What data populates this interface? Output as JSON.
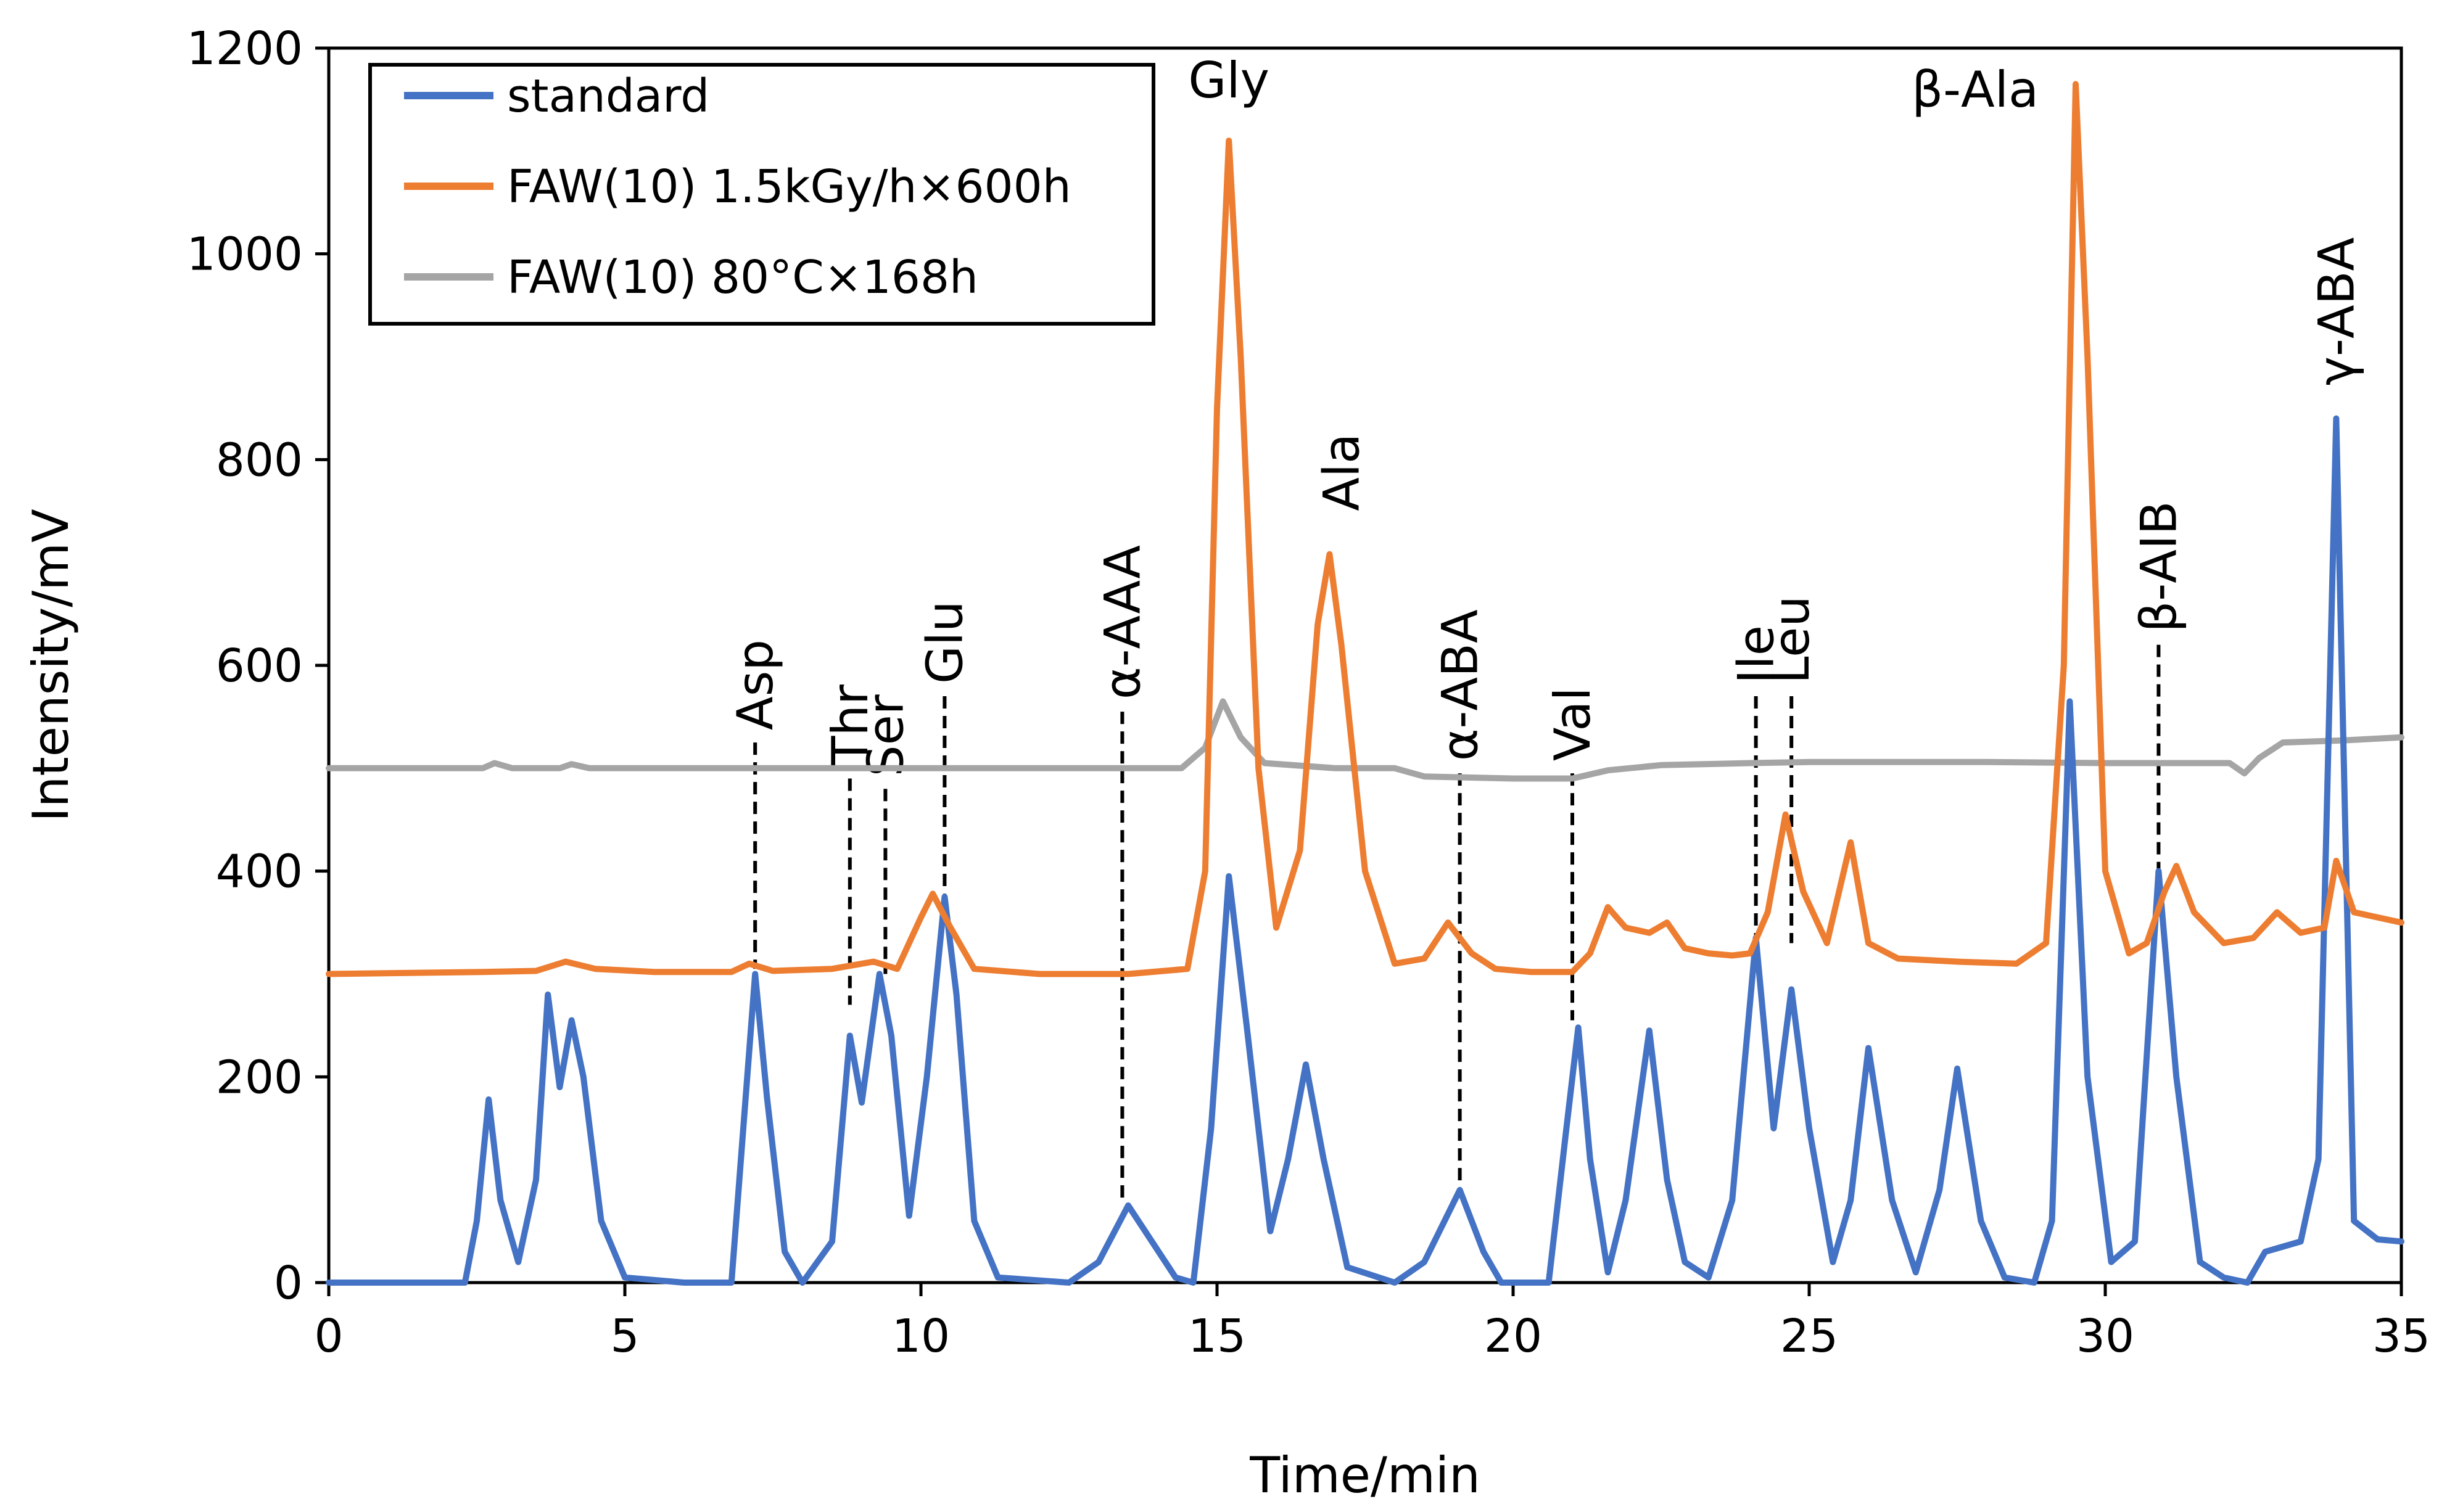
{
  "chart_data": {
    "type": "line",
    "title": "",
    "xlabel": "Time/min",
    "ylabel": "Intensity/mV",
    "xlim": [
      0,
      35
    ],
    "ylim": [
      0,
      1200
    ],
    "xticks": [
      0,
      5,
      10,
      15,
      20,
      25,
      30,
      35
    ],
    "yticks": [
      0,
      200,
      400,
      600,
      800,
      1000,
      1200
    ],
    "grid": false,
    "legend_position": "top-left",
    "series": [
      {
        "name": "standard",
        "color": "#4472C4",
        "points": [
          [
            0,
            0
          ],
          [
            2.3,
            0
          ],
          [
            2.5,
            60
          ],
          [
            2.7,
            178
          ],
          [
            2.9,
            80
          ],
          [
            3.2,
            20
          ],
          [
            3.5,
            100
          ],
          [
            3.7,
            280
          ],
          [
            3.9,
            190
          ],
          [
            4.1,
            255
          ],
          [
            4.3,
            200
          ],
          [
            4.6,
            60
          ],
          [
            5.0,
            5
          ],
          [
            6.0,
            0
          ],
          [
            6.8,
            0
          ],
          [
            7.0,
            150
          ],
          [
            7.2,
            300
          ],
          [
            7.4,
            180
          ],
          [
            7.7,
            30
          ],
          [
            8.0,
            0
          ],
          [
            8.5,
            40
          ],
          [
            8.8,
            240
          ],
          [
            9.0,
            175
          ],
          [
            9.3,
            300
          ],
          [
            9.5,
            240
          ],
          [
            9.8,
            65
          ],
          [
            10.1,
            200
          ],
          [
            10.4,
            375
          ],
          [
            10.6,
            280
          ],
          [
            10.9,
            60
          ],
          [
            11.3,
            5
          ],
          [
            12.5,
            0
          ],
          [
            13.0,
            20
          ],
          [
            13.5,
            75
          ],
          [
            13.9,
            40
          ],
          [
            14.3,
            5
          ],
          [
            14.6,
            0
          ],
          [
            14.9,
            150
          ],
          [
            15.2,
            395
          ],
          [
            15.5,
            250
          ],
          [
            15.9,
            50
          ],
          [
            16.2,
            120
          ],
          [
            16.5,
            212
          ],
          [
            16.8,
            120
          ],
          [
            17.2,
            15
          ],
          [
            18.0,
            0
          ],
          [
            18.5,
            20
          ],
          [
            19.1,
            90
          ],
          [
            19.5,
            30
          ],
          [
            19.8,
            0
          ],
          [
            20.6,
            0
          ],
          [
            20.9,
            150
          ],
          [
            21.1,
            248
          ],
          [
            21.3,
            120
          ],
          [
            21.6,
            10
          ],
          [
            21.9,
            80
          ],
          [
            22.3,
            245
          ],
          [
            22.6,
            100
          ],
          [
            22.9,
            20
          ],
          [
            23.3,
            5
          ],
          [
            23.7,
            80
          ],
          [
            24.1,
            335
          ],
          [
            24.4,
            150
          ],
          [
            24.7,
            285
          ],
          [
            25.0,
            150
          ],
          [
            25.4,
            20
          ],
          [
            25.7,
            80
          ],
          [
            26.0,
            228
          ],
          [
            26.4,
            80
          ],
          [
            26.8,
            10
          ],
          [
            27.2,
            90
          ],
          [
            27.5,
            208
          ],
          [
            27.9,
            60
          ],
          [
            28.3,
            5
          ],
          [
            28.8,
            0
          ],
          [
            29.1,
            60
          ],
          [
            29.4,
            565
          ],
          [
            29.7,
            200
          ],
          [
            30.1,
            20
          ],
          [
            30.5,
            40
          ],
          [
            30.9,
            400
          ],
          [
            31.2,
            200
          ],
          [
            31.6,
            20
          ],
          [
            32.0,
            5
          ],
          [
            32.4,
            0
          ],
          [
            32.7,
            30
          ],
          [
            33.3,
            40
          ],
          [
            33.6,
            120
          ],
          [
            33.9,
            840
          ],
          [
            34.2,
            60
          ],
          [
            34.6,
            42
          ],
          [
            35.0,
            40
          ]
        ]
      },
      {
        "name": "FAW(10) 1.5kGy/h×600h",
        "color": "#ED7D31",
        "points": [
          [
            0,
            300
          ],
          [
            2.6,
            302
          ],
          [
            3.5,
            303
          ],
          [
            4.0,
            312
          ],
          [
            4.5,
            305
          ],
          [
            5.5,
            302
          ],
          [
            6.8,
            302
          ],
          [
            7.1,
            310
          ],
          [
            7.5,
            303
          ],
          [
            8.5,
            305
          ],
          [
            9.2,
            312
          ],
          [
            9.6,
            305
          ],
          [
            10.0,
            355
          ],
          [
            10.2,
            378
          ],
          [
            10.5,
            345
          ],
          [
            10.9,
            305
          ],
          [
            12.0,
            300
          ],
          [
            13.5,
            300
          ],
          [
            14.5,
            305
          ],
          [
            14.8,
            400
          ],
          [
            15.0,
            850
          ],
          [
            15.2,
            1110
          ],
          [
            15.4,
            900
          ],
          [
            15.7,
            500
          ],
          [
            16.0,
            345
          ],
          [
            16.4,
            420
          ],
          [
            16.7,
            640
          ],
          [
            16.9,
            708
          ],
          [
            17.1,
            620
          ],
          [
            17.5,
            400
          ],
          [
            18.0,
            310
          ],
          [
            18.5,
            315
          ],
          [
            18.9,
            350
          ],
          [
            19.3,
            320
          ],
          [
            19.7,
            305
          ],
          [
            20.3,
            302
          ],
          [
            21.0,
            302
          ],
          [
            21.3,
            320
          ],
          [
            21.6,
            365
          ],
          [
            21.9,
            345
          ],
          [
            22.3,
            340
          ],
          [
            22.6,
            350
          ],
          [
            22.9,
            325
          ],
          [
            23.3,
            320
          ],
          [
            23.7,
            318
          ],
          [
            24.0,
            320
          ],
          [
            24.3,
            360
          ],
          [
            24.6,
            455
          ],
          [
            24.9,
            380
          ],
          [
            25.3,
            330
          ],
          [
            25.7,
            428
          ],
          [
            26.0,
            330
          ],
          [
            26.5,
            315
          ],
          [
            27.5,
            312
          ],
          [
            28.5,
            310
          ],
          [
            29.0,
            330
          ],
          [
            29.3,
            600
          ],
          [
            29.5,
            1165
          ],
          [
            29.7,
            900
          ],
          [
            30.0,
            400
          ],
          [
            30.4,
            320
          ],
          [
            30.7,
            330
          ],
          [
            31.0,
            380
          ],
          [
            31.2,
            405
          ],
          [
            31.5,
            360
          ],
          [
            32.0,
            330
          ],
          [
            32.5,
            335
          ],
          [
            32.9,
            360
          ],
          [
            33.3,
            340
          ],
          [
            33.7,
            345
          ],
          [
            33.9,
            410
          ],
          [
            34.2,
            360
          ],
          [
            34.6,
            355
          ],
          [
            35.0,
            350
          ]
        ]
      },
      {
        "name": "FAW(10) 80°C×168h",
        "color": "#A5A5A5",
        "points": [
          [
            0,
            500
          ],
          [
            2.6,
            500
          ],
          [
            2.8,
            505
          ],
          [
            3.1,
            500
          ],
          [
            3.9,
            500
          ],
          [
            4.1,
            504
          ],
          [
            4.4,
            500
          ],
          [
            8.0,
            500
          ],
          [
            12.0,
            500
          ],
          [
            14.4,
            500
          ],
          [
            14.8,
            520
          ],
          [
            15.1,
            565
          ],
          [
            15.4,
            530
          ],
          [
            15.8,
            505
          ],
          [
            17.0,
            500
          ],
          [
            18.0,
            500
          ],
          [
            18.5,
            492
          ],
          [
            20.0,
            490
          ],
          [
            21.0,
            490
          ],
          [
            21.6,
            498
          ],
          [
            22.5,
            503
          ],
          [
            24.0,
            505
          ],
          [
            25.0,
            506
          ],
          [
            28.0,
            506
          ],
          [
            30.0,
            505
          ],
          [
            32.1,
            505
          ],
          [
            32.35,
            495
          ],
          [
            32.6,
            510
          ],
          [
            33.0,
            525
          ],
          [
            34.0,
            527
          ],
          [
            35.0,
            530
          ]
        ]
      }
    ],
    "annotations": [
      {
        "label": "Asp",
        "x": 7.2,
        "y_top": 525,
        "y_bottom": 305
      },
      {
        "label": "Thr",
        "x": 8.8,
        "y_top": 490,
        "y_bottom": 270
      },
      {
        "label": "Ser",
        "x": 9.4,
        "y_top": 480,
        "y_bottom": 300
      },
      {
        "label": "Glu",
        "x": 10.4,
        "y_top": 570,
        "y_bottom": 378
      },
      {
        "label": "α-AAA",
        "x": 13.4,
        "y_top": 555,
        "y_bottom": 78
      },
      {
        "label": "Gly",
        "x": 15.2,
        "y_top": null,
        "y_bottom": null
      },
      {
        "label": "Ala",
        "x": 17.1,
        "y_top": null,
        "y_bottom": null
      },
      {
        "label": "α-ABA",
        "x": 19.1,
        "y_top": 495,
        "y_bottom": 95
      },
      {
        "label": "Val",
        "x": 21.0,
        "y_top": 495,
        "y_bottom": 255
      },
      {
        "label": "Ile",
        "x": 24.1,
        "y_top": 570,
        "y_bottom": 335
      },
      {
        "label": "Leu",
        "x": 24.7,
        "y_top": 570,
        "y_bottom": 330
      },
      {
        "label": "β-Ala",
        "x": 29.5,
        "y_top": null,
        "y_bottom": null
      },
      {
        "label": "β-AIB",
        "x": 30.9,
        "y_top": 620,
        "y_bottom": 400
      },
      {
        "label": "γ-ABA",
        "x": 33.9,
        "y_top": null,
        "y_bottom": null
      }
    ]
  }
}
